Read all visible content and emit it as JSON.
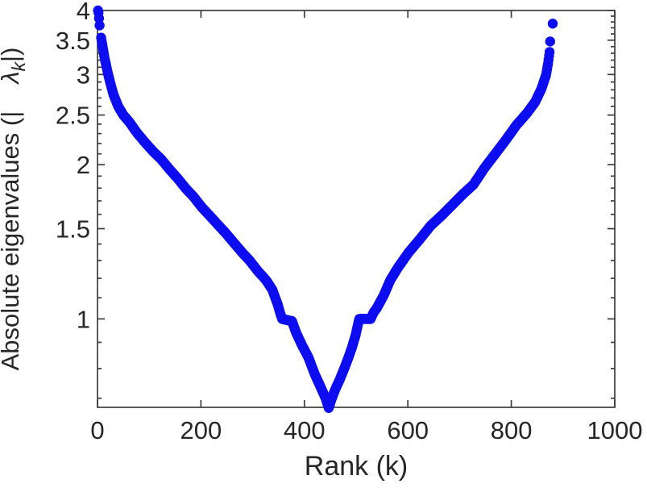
{
  "figure": {
    "background": "#FFFFFF",
    "axis_color": "#3D3D3D",
    "text_color": "#262626"
  },
  "chart_data": {
    "type": "scatter",
    "title": "",
    "xlabel": "Rank (k)",
    "ylabel": "Absolute eigenvalues (|  λ_k|)",
    "ylabel_parts": {
      "prefix": "Absolute eigenvalues (|",
      "symbol": "λ",
      "subscript": "k",
      "suffix": "|)"
    },
    "x_axis": {
      "scale": "linear",
      "lim": [
        0,
        1000
      ],
      "major_ticks": [
        0,
        200,
        400,
        600,
        800,
        1000
      ],
      "tick_labels": [
        "0",
        "200",
        "400",
        "600",
        "800",
        "1000"
      ],
      "minor_ticks": []
    },
    "y_axis": {
      "scale": "log",
      "lim": [
        0.672,
        4
      ],
      "major_ticks": [
        1,
        1.5,
        2,
        2.5,
        3,
        3.5,
        4
      ],
      "tick_labels": [
        "1",
        "1.5",
        "2",
        "2.5",
        "3",
        "3.5",
        "4"
      ],
      "minor_ticks": [
        0.7,
        0.8,
        0.9,
        1.1,
        1.2,
        1.3,
        1.4,
        1.6,
        1.7,
        1.8,
        1.9,
        2.1,
        2.2,
        2.3,
        2.4,
        2.6,
        2.7,
        2.8,
        2.9,
        3.1,
        3.2,
        3.3,
        3.4,
        3.6,
        3.7,
        3.8,
        3.9
      ]
    },
    "grid": "off",
    "legend": "none",
    "series": [
      {
        "name": "absolute-eigenvalues",
        "marker": "dot",
        "marker_color": "#0D0DF0",
        "num_points": 880,
        "gap_ranks": [
          [
            5,
            6
          ],
          [
            876,
            879
          ]
        ],
        "control_points": [
          [
            1,
            4.0
          ],
          [
            2,
            3.96
          ],
          [
            3,
            3.86
          ],
          [
            4,
            3.74
          ],
          [
            7,
            3.54
          ],
          [
            10,
            3.4
          ],
          [
            14,
            3.22
          ],
          [
            19,
            3.05
          ],
          [
            25,
            2.88
          ],
          [
            31,
            2.74
          ],
          [
            40,
            2.6
          ],
          [
            50,
            2.5
          ],
          [
            62,
            2.42
          ],
          [
            76,
            2.31
          ],
          [
            92,
            2.21
          ],
          [
            108,
            2.12
          ],
          [
            123,
            2.05
          ],
          [
            139,
            1.96
          ],
          [
            155,
            1.88
          ],
          [
            170,
            1.8
          ],
          [
            186,
            1.73
          ],
          [
            202,
            1.65
          ],
          [
            217,
            1.59
          ],
          [
            232,
            1.53
          ],
          [
            248,
            1.47
          ],
          [
            263,
            1.41
          ],
          [
            279,
            1.35
          ],
          [
            294,
            1.3
          ],
          [
            310,
            1.24
          ],
          [
            326,
            1.19
          ],
          [
            338,
            1.14
          ],
          [
            348,
            1.07
          ],
          [
            354,
            1.02
          ],
          [
            357,
            1.0
          ],
          [
            376,
            0.99
          ],
          [
            384,
            0.94
          ],
          [
            395,
            0.89
          ],
          [
            408,
            0.84
          ],
          [
            420,
            0.78
          ],
          [
            433,
            0.73
          ],
          [
            441,
            0.7
          ],
          [
            447,
            0.67
          ],
          [
            453,
            0.7
          ],
          [
            460,
            0.73
          ],
          [
            468,
            0.76
          ],
          [
            477,
            0.8
          ],
          [
            485,
            0.84
          ],
          [
            492,
            0.88
          ],
          [
            499,
            0.93
          ],
          [
            504,
            0.98
          ],
          [
            506,
            1.0
          ],
          [
            528,
            1.0
          ],
          [
            534,
            1.03
          ],
          [
            540,
            1.05
          ],
          [
            553,
            1.11
          ],
          [
            566,
            1.19
          ],
          [
            581,
            1.26
          ],
          [
            602,
            1.35
          ],
          [
            623,
            1.43
          ],
          [
            644,
            1.52
          ],
          [
            665,
            1.59
          ],
          [
            686,
            1.67
          ],
          [
            706,
            1.75
          ],
          [
            727,
            1.83
          ],
          [
            748,
            1.97
          ],
          [
            769,
            2.1
          ],
          [
            790,
            2.24
          ],
          [
            810,
            2.39
          ],
          [
            830,
            2.52
          ],
          [
            846,
            2.65
          ],
          [
            858,
            2.81
          ],
          [
            867,
            2.99
          ],
          [
            871,
            3.15
          ],
          [
            874,
            3.32
          ],
          [
            875,
            3.48
          ],
          [
            880,
            3.77
          ]
        ]
      }
    ]
  }
}
